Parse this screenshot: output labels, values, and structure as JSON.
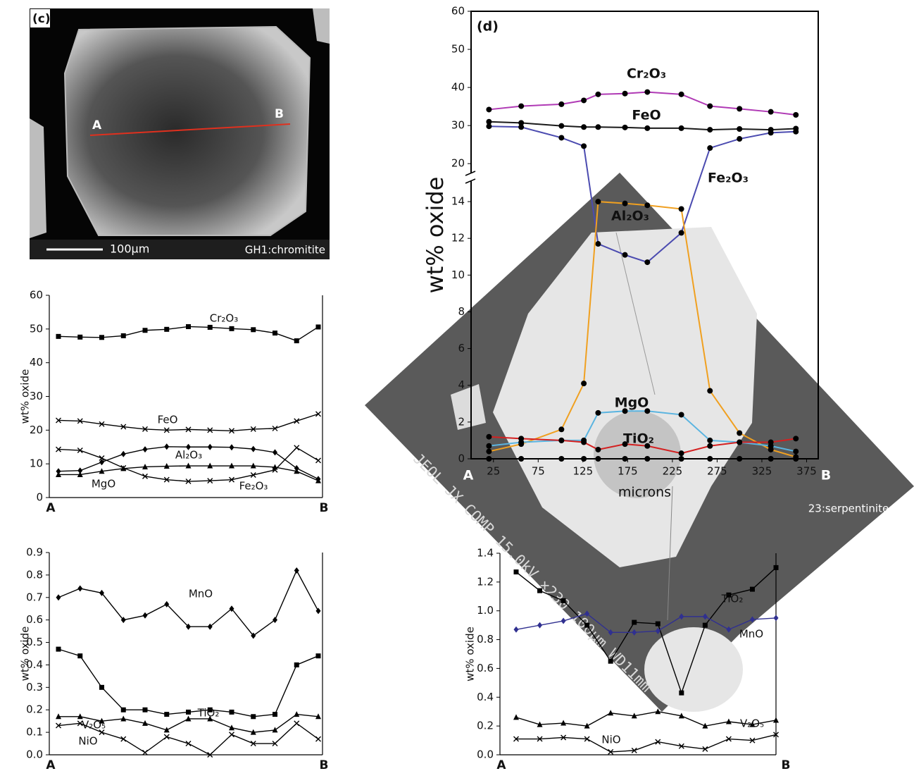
{
  "panel_c": {
    "label": "(c)",
    "point_a": "A",
    "point_b": "B",
    "scale_bar": "100μm",
    "sample": "GH1:chromitite"
  },
  "chart_data": [
    {
      "type": "line",
      "y_label": "wt% oxide",
      "x_ends": [
        "A",
        "B"
      ],
      "categories": [
        null,
        null,
        null,
        null,
        null,
        null,
        null,
        null,
        null,
        null,
        null,
        null,
        null
      ],
      "ylim": [
        0,
        60
      ],
      "yticks": [
        0,
        10,
        20,
        30,
        40,
        50,
        60
      ],
      "series": [
        {
          "name": "Cr₂O₃",
          "color": "#000000",
          "marker": "square",
          "values": [
            47.8,
            47.6,
            47.5,
            48.0,
            49.6,
            49.9,
            50.7,
            50.5,
            50.1,
            49.8,
            48.8,
            46.5,
            50.6
          ]
        },
        {
          "name": "FeO",
          "color": "#000000",
          "marker": "x",
          "values": [
            22.9,
            22.7,
            21.8,
            21.0,
            20.3,
            20.0,
            20.2,
            20.0,
            19.8,
            20.3,
            20.5,
            22.7,
            24.8
          ]
        },
        {
          "name": "Al₂O₃",
          "color": "#000000",
          "marker": "diamond",
          "values": [
            7.8,
            8.0,
            10.5,
            12.9,
            14.3,
            15.1,
            15.0,
            15.0,
            14.9,
            14.4,
            13.4,
            8.7,
            5.5
          ]
        },
        {
          "name": "MgO",
          "color": "#000000",
          "marker": "triangle",
          "values": [
            6.8,
            6.8,
            7.8,
            8.6,
            9.1,
            9.3,
            9.4,
            9.4,
            9.4,
            9.4,
            9.0,
            7.8,
            5.0
          ]
        },
        {
          "name": "Fe₂O₃",
          "color": "#000000",
          "marker": "x",
          "values": [
            14.3,
            14.0,
            11.7,
            8.8,
            6.3,
            5.3,
            4.8,
            5.0,
            5.3,
            6.7,
            8.2,
            14.8,
            11.0
          ]
        }
      ]
    },
    {
      "type": "line",
      "y_label": "wt% oxide",
      "x_ends": [
        "A",
        "B"
      ],
      "categories": [
        null,
        null,
        null,
        null,
        null,
        null,
        null,
        null,
        null,
        null,
        null,
        null,
        null
      ],
      "ylim": [
        0,
        0.9
      ],
      "yticks": [
        {
          "value": 0,
          "label": "0.0"
        },
        0.1,
        0.2,
        0.3,
        0.4,
        0.5,
        0.6,
        0.7,
        0.8,
        0.9
      ],
      "series": [
        {
          "name": "MnO",
          "color": "#000000",
          "marker": "diamond",
          "values": [
            0.7,
            0.74,
            0.72,
            0.6,
            0.62,
            0.67,
            0.57,
            0.57,
            0.65,
            0.53,
            0.6,
            0.82,
            0.64
          ]
        },
        {
          "name": "TiO₂",
          "color": "#000000",
          "marker": "square",
          "values": [
            0.47,
            0.44,
            0.3,
            0.2,
            0.2,
            0.18,
            0.19,
            0.2,
            0.19,
            0.17,
            0.18,
            0.4,
            0.44
          ]
        },
        {
          "name": "V₂O₅",
          "color": "#000000",
          "marker": "triangle",
          "values": [
            0.17,
            0.17,
            0.15,
            0.16,
            0.14,
            0.11,
            0.16,
            0.16,
            0.12,
            0.1,
            0.11,
            0.18,
            0.17
          ]
        },
        {
          "name": "NiO",
          "color": "#000000",
          "marker": "x",
          "values": [
            0.13,
            0.14,
            0.1,
            0.07,
            0.01,
            0.08,
            0.05,
            0.0,
            0.09,
            0.05,
            0.05,
            0.14,
            0.07
          ]
        }
      ]
    },
    {
      "type": "line",
      "panel_label": "(d)",
      "y_label": "wt% oxide",
      "x_label": "microns",
      "x_ends": [
        "A",
        "B"
      ],
      "sample": "23:serpentinite",
      "image_text": "JEOL JX COMP 15.0kV ×230 100μm WD11mm",
      "x": [
        20,
        56,
        101,
        126,
        142,
        172,
        197,
        235,
        267,
        300,
        335,
        363
      ],
      "xlim": [
        0,
        388
      ],
      "xticks": [
        25,
        75,
        125,
        175,
        225,
        275,
        325,
        375
      ],
      "ylim": [
        0,
        60
      ],
      "axis_break": [
        15,
        18
      ],
      "yticks": [
        0,
        2,
        4,
        6,
        8,
        10,
        12,
        14,
        20,
        30,
        40,
        50,
        60
      ],
      "series": [
        {
          "name": "Cr₂O₃",
          "color": "#b03ab5",
          "values": [
            34.2,
            35.1,
            35.6,
            36.6,
            38.2,
            38.4,
            38.8,
            38.2,
            35.1,
            34.4,
            33.6,
            32.8
          ]
        },
        {
          "name": "FeO",
          "color": "#1a1a1a",
          "values": [
            31.0,
            30.7,
            29.9,
            29.6,
            29.6,
            29.5,
            29.3,
            29.3,
            28.9,
            29.1,
            28.9,
            29.2
          ]
        },
        {
          "name": "Fe₂O₃",
          "color": "#4b4bb0",
          "values": [
            29.8,
            29.6,
            26.8,
            24.6,
            11.7,
            11.1,
            10.7,
            12.3,
            24.1,
            26.5,
            28.1,
            28.4
          ]
        },
        {
          "name": "Al₂O₃",
          "color": "#f0a020",
          "values": [
            0.4,
            0.8,
            1.6,
            4.1,
            14.0,
            13.9,
            13.8,
            13.6,
            3.7,
            1.4,
            0.5,
            0.1
          ]
        },
        {
          "name": "MgO",
          "color": "#5ab4e0",
          "values": [
            0.7,
            0.9,
            1.0,
            1.0,
            2.5,
            2.6,
            2.6,
            2.4,
            1.0,
            0.9,
            0.7,
            0.4
          ]
        },
        {
          "name": "TiO₂",
          "color": "#d42020",
          "values": [
            1.2,
            1.1,
            1.0,
            0.9,
            0.5,
            0.8,
            0.7,
            0.3,
            0.7,
            0.9,
            0.9,
            1.1
          ]
        },
        {
          "color": "#000000",
          "values": [
            0,
            0,
            0,
            0,
            0,
            0,
            0,
            0,
            0,
            0,
            0,
            0
          ]
        }
      ]
    },
    {
      "type": "line",
      "y_label": "wt% oxide",
      "x_ends": [
        "A",
        "B"
      ],
      "categories": [
        null,
        null,
        null,
        null,
        null,
        null,
        null,
        null,
        null,
        null,
        null,
        null
      ],
      "ylim": [
        0,
        1.4
      ],
      "yticks": [
        {
          "value": 0,
          "label": "0.0"
        },
        0.2,
        0.4,
        0.6,
        0.8,
        {
          "value": 1,
          "label": "1.0"
        },
        1.2,
        1.4
      ],
      "series": [
        {
          "name": "TiO₂",
          "color": "#000000",
          "marker": "square",
          "values": [
            1.27,
            1.14,
            1.07,
            0.9,
            0.65,
            0.92,
            0.91,
            0.43,
            0.9,
            1.11,
            1.15,
            1.3
          ]
        },
        {
          "name": "MnO",
          "color": "#303090",
          "marker": "diamond",
          "values": [
            0.87,
            0.9,
            0.93,
            0.98,
            0.85,
            0.85,
            0.86,
            0.96,
            0.96,
            0.87,
            0.94,
            0.95
          ]
        },
        {
          "name": "V₂O₅",
          "color": "#000000",
          "marker": "triangle",
          "values": [
            0.26,
            0.21,
            0.22,
            0.2,
            0.29,
            0.27,
            0.3,
            0.27,
            0.2,
            0.23,
            0.21,
            0.24
          ]
        },
        {
          "name": "NiO",
          "color": "#000000",
          "marker": "x",
          "values": [
            0.11,
            0.11,
            0.12,
            0.11,
            0.02,
            0.03,
            0.09,
            0.06,
            0.04,
            0.11,
            0.1,
            0.14
          ]
        }
      ]
    }
  ]
}
